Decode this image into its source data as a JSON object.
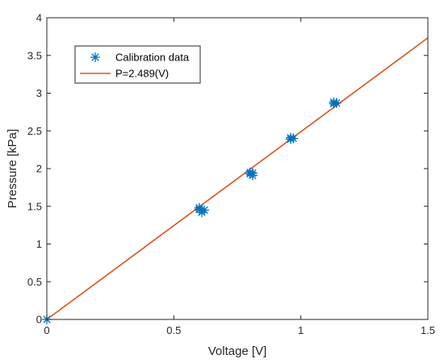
{
  "chart_data": {
    "type": "scatter",
    "title": "",
    "xlabel": "Voltage [V]",
    "ylabel": "Pressure [kPa]",
    "xlim": [
      0,
      1.5
    ],
    "ylim": [
      0,
      4
    ],
    "x_ticks": [
      0,
      0.5,
      1,
      1.5
    ],
    "x_tick_labels": [
      "0",
      "0.5",
      "1",
      "1.5"
    ],
    "y_ticks": [
      0,
      0.5,
      1,
      1.5,
      2,
      2.5,
      3,
      3.5,
      4
    ],
    "y_tick_labels": [
      "0",
      "0.5",
      "1",
      "1.5",
      "2",
      "2.5",
      "3",
      "3.5",
      "4"
    ],
    "grid": false,
    "legend_position": "top-left",
    "series": [
      {
        "name": "Calibration data",
        "kind": "scatter",
        "marker": "asterisk",
        "color": "#0072BD",
        "points": [
          [
            0,
            0
          ],
          [
            0.6,
            1.46
          ],
          [
            0.61,
            1.42
          ],
          [
            0.62,
            1.45
          ],
          [
            0.6,
            1.48
          ],
          [
            0.8,
            1.93
          ],
          [
            0.81,
            1.91
          ],
          [
            0.8,
            1.95
          ],
          [
            0.81,
            1.94
          ],
          [
            0.96,
            2.39
          ],
          [
            0.97,
            2.4
          ],
          [
            0.96,
            2.41
          ],
          [
            1.13,
            2.86
          ],
          [
            1.14,
            2.87
          ],
          [
            1.13,
            2.88
          ]
        ]
      },
      {
        "name": "P=2.489(V)",
        "kind": "line",
        "color": "#D95319",
        "slope": 2.489,
        "x": [
          0,
          1.5
        ]
      }
    ]
  }
}
